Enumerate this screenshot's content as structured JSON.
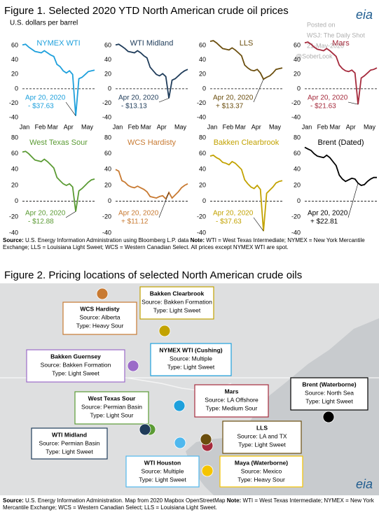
{
  "figure1": {
    "title": "Figure 1. Selected 2020 YTD North American crude oil prices",
    "subtitle": "U.S. dollars per barrel",
    "source_label": "Source:",
    "source": "U.S. Energy Information Administration using Bloomberg L.P. data",
    "note_label": "Note:",
    "note": "WTI = West Texas Intermediate; NYMEX = New York Mercantile Exchange; LLS = Louisiana Light Sweet; WCS = Western Canadian Select. All prices except NYMEX WTI are spot."
  },
  "logo": "eia",
  "watermark": [
    "Posted on",
    "WSJ: The Daily Shot",
    "21-May-2020",
    "@SoberLook"
  ],
  "chart_data": [
    {
      "type": "line",
      "title": "NYMEX WTI",
      "color": "#1ea0dc",
      "ylim": [
        -40,
        70
      ],
      "yticks": [
        -40,
        -20,
        0,
        20,
        40,
        60
      ],
      "categories": [
        "Jan",
        null,
        null,
        null,
        null,
        "Feb",
        null,
        null,
        null,
        "Mar",
        null,
        null,
        null,
        null,
        "Apr",
        null,
        null,
        null,
        null,
        null,
        "May",
        null,
        null,
        null
      ],
      "values": [
        61,
        62,
        58,
        55,
        52,
        51,
        50,
        53,
        50,
        47,
        45,
        34,
        31,
        25,
        22,
        25,
        20,
        -37.63,
        14,
        16,
        20,
        24,
        25,
        26
      ],
      "annotation": [
        "Apr 20, 2020",
        "- $37.63"
      ]
    },
    {
      "type": "line",
      "title": "WTI Midland",
      "color": "#1f3c5a",
      "ylim": [
        -40,
        70
      ],
      "yticks": [
        -40,
        -20,
        0,
        20,
        40,
        60
      ],
      "categories": [
        "Jan",
        null,
        null,
        null,
        null,
        "Feb",
        null,
        null,
        null,
        "Mar",
        null,
        null,
        null,
        null,
        "Apr",
        null,
        null,
        null,
        null,
        null,
        "May",
        null,
        null,
        null
      ],
      "values": [
        61,
        62,
        59,
        56,
        52,
        51,
        50,
        53,
        50,
        46,
        43,
        30,
        25,
        20,
        18,
        21,
        17,
        -13.13,
        12,
        14,
        18,
        22,
        25,
        27
      ],
      "annotation": [
        "Apr 20, 2020",
        "- $13.13"
      ]
    },
    {
      "type": "line",
      "title": "LLS",
      "color": "#6b4e0e",
      "ylim": [
        -40,
        70
      ],
      "yticks": [
        -40,
        -20,
        0,
        20,
        40,
        60
      ],
      "categories": [
        "Jan",
        null,
        null,
        null,
        null,
        "Feb",
        null,
        null,
        null,
        "Mar",
        null,
        null,
        null,
        null,
        "Apr",
        null,
        null,
        null,
        null,
        null,
        "May",
        null,
        null,
        null
      ],
      "values": [
        66,
        67,
        64,
        60,
        56,
        55,
        54,
        57,
        54,
        50,
        46,
        33,
        29,
        26,
        25,
        27,
        22,
        13.37,
        16,
        18,
        22,
        27,
        28,
        29
      ],
      "annotation": [
        "Apr 20, 2020",
        "+ $13.37"
      ]
    },
    {
      "type": "line",
      "title": "Mars",
      "color": "#a52a3c",
      "ylim": [
        -40,
        70
      ],
      "yticks": [
        -40,
        -20,
        0,
        20,
        40,
        60
      ],
      "categories": [
        "Jan",
        null,
        null,
        null,
        null,
        "Feb",
        null,
        null,
        null,
        "Mar",
        null,
        null,
        null,
        null,
        "Apr",
        null,
        null,
        null,
        null,
        null,
        "May",
        null,
        null,
        null
      ],
      "values": [
        64,
        65,
        62,
        58,
        55,
        54,
        53,
        56,
        53,
        49,
        45,
        33,
        28,
        25,
        24,
        26,
        22,
        -21.63,
        15,
        18,
        22,
        26,
        27,
        29
      ],
      "annotation": [
        "Apr 20, 2020",
        "- $21.63"
      ]
    },
    {
      "type": "line",
      "title": "West Texas Sour",
      "color": "#5b9b34",
      "ylim": [
        -40,
        80
      ],
      "yticks": [
        -40,
        -20,
        0,
        20,
        40,
        60,
        80
      ],
      "categories": [
        null,
        null,
        null,
        null,
        null,
        null,
        null,
        null,
        null,
        null,
        null,
        null,
        null,
        null,
        null,
        null,
        null,
        null,
        null,
        null,
        null,
        null,
        null,
        null
      ],
      "values": [
        62,
        63,
        60,
        56,
        52,
        51,
        50,
        53,
        50,
        46,
        42,
        30,
        26,
        22,
        20,
        22,
        18,
        -12.88,
        13,
        16,
        20,
        24,
        27,
        28
      ],
      "annotation": [
        "Apr 20, 2020",
        "- $12.88"
      ]
    },
    {
      "type": "line",
      "title": "WCS Hardisty",
      "color": "#c87a32",
      "ylim": [
        -40,
        80
      ],
      "yticks": [
        -40,
        -20,
        0,
        20,
        40,
        60,
        80
      ],
      "categories": [
        null,
        null,
        null,
        null,
        null,
        null,
        null,
        null,
        null,
        null,
        null,
        null,
        null,
        null,
        null,
        null,
        null,
        null,
        null,
        null,
        null,
        null,
        null,
        null
      ],
      "values": [
        40,
        38,
        26,
        24,
        20,
        18,
        17,
        19,
        17,
        15,
        12,
        6,
        5,
        4,
        6,
        7,
        3,
        11.12,
        4,
        8,
        12,
        17,
        20,
        22
      ],
      "annotation": [
        "Apr 20, 2020",
        "+ $11.12"
      ]
    },
    {
      "type": "line",
      "title": "Bakken Clearbrook",
      "color": "#c2a200",
      "ylim": [
        -40,
        80
      ],
      "yticks": [
        -40,
        -20,
        0,
        20,
        40,
        60,
        80
      ],
      "categories": [
        null,
        null,
        null,
        null,
        null,
        null,
        null,
        null,
        null,
        null,
        null,
        null,
        null,
        null,
        null,
        null,
        null,
        null,
        null,
        null,
        null,
        null,
        null,
        null
      ],
      "values": [
        57,
        58,
        55,
        53,
        49,
        48,
        46,
        50,
        48,
        44,
        40,
        27,
        22,
        18,
        16,
        20,
        15,
        -37.63,
        10,
        14,
        18,
        23,
        25,
        26
      ],
      "annotation": [
        "Apr 20, 2020",
        "- $37.63"
      ]
    },
    {
      "type": "line",
      "title": "Brent  (Dated)",
      "color": "#000000",
      "ylim": [
        -40,
        80
      ],
      "yticks": [
        -40,
        -20,
        0,
        20,
        40,
        60,
        80
      ],
      "categories": [
        null,
        null,
        null,
        null,
        null,
        null,
        null,
        null,
        null,
        null,
        null,
        null,
        null,
        null,
        null,
        null,
        null,
        null,
        null,
        null,
        null,
        null,
        null,
        null
      ],
      "values": [
        68,
        66,
        64,
        60,
        57,
        56,
        55,
        58,
        55,
        50,
        45,
        33,
        28,
        25,
        27,
        29,
        28,
        22.81,
        20,
        21,
        25,
        28,
        30,
        30
      ],
      "annotation": [
        "Apr 20, 2020",
        "+ $22.81"
      ]
    }
  ],
  "figure2": {
    "title": "Figure 2. Pricing locations of selected North American crude oils",
    "locations": [
      {
        "name": "WCS Hardisty",
        "source": "Source: Alberta",
        "type": "Type: Heavy Sour",
        "color": "#c87a32"
      },
      {
        "name": "Bakken Clearbrook",
        "source": "Source: Bakken Formation",
        "type": "Type: Light Sweet",
        "color": "#c2a200"
      },
      {
        "name": "Bakken Guernsey",
        "source": "Source: Bakken Formation",
        "type": "Type: Light Sweet",
        "color": "#9b6bc8"
      },
      {
        "name": "NYMEX WTI (Cushing)",
        "source": "Source: Multiple",
        "type": "Type: Light Sweet",
        "color": "#1ea0dc"
      },
      {
        "name": "West Texas Sour",
        "source": "Source: Permian Basin",
        "type": "Type: Light Sour",
        "color": "#5b9b34"
      },
      {
        "name": "Mars",
        "source": "Source: LA Offshore",
        "type": "Type: Medium Sour",
        "color": "#a52a3c"
      },
      {
        "name": "Brent (Waterborne)",
        "source": "Source: North Sea",
        "type": "Type: Light Sweet",
        "color": "#000000"
      },
      {
        "name": "WTI Midland",
        "source": "Source: Permian Basin",
        "type": "Type: Light Sweet",
        "color": "#1f3c5a"
      },
      {
        "name": "LLS",
        "source": "Source: LA and TX",
        "type": "Type: Light Sweet",
        "color": "#6b4e0e"
      },
      {
        "name": "WTI Houston",
        "source": "Source: Multiple",
        "type": "Type: Light Sweet",
        "color": "#4fb8ee"
      },
      {
        "name": "Maya (Waterborne)",
        "source": "Source: Mexico",
        "type": "Type: Heavy Sour",
        "color": "#f5c400"
      }
    ],
    "source_label": "Source:",
    "source": "U.S. Energy Information Administration. Map from 2020 Mapbox OpenStreetMap",
    "note_label": "Note:",
    "note": "WTI = West Texas Intermediate; NYMEX = New York Mercantile Exchange; WCS = Western Canadian Select; LLS = Louisiana Light Sweet."
  }
}
